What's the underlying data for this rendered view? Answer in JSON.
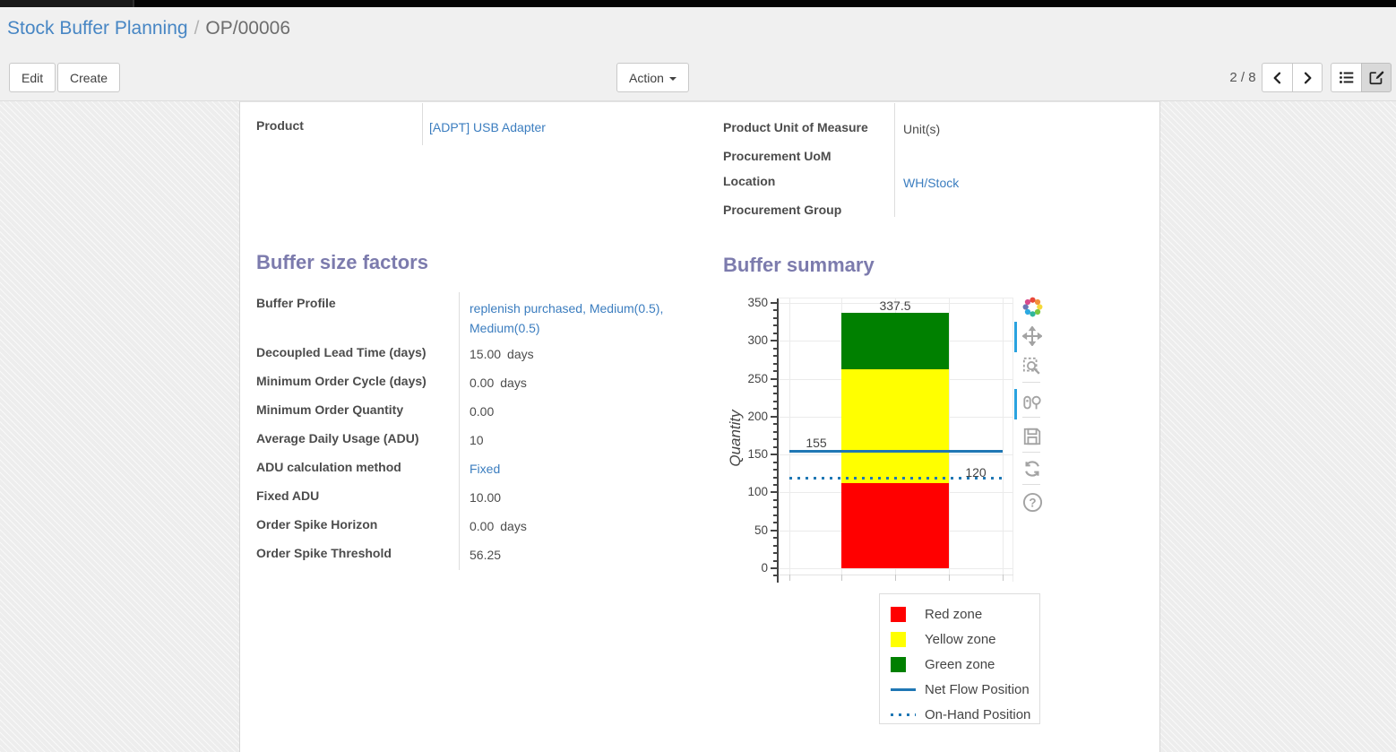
{
  "breadcrumb": {
    "items": [
      {
        "label": "Stock Buffer Planning"
      },
      {
        "label": "OP/00006"
      }
    ],
    "separator": "/"
  },
  "toolbar": {
    "edit_label": "Edit",
    "create_label": "Create",
    "action_label": "Action",
    "pager_value": "2 / 8",
    "icons": {
      "previous": "chevron-left-icon",
      "next": "chevron-right-icon",
      "list_view": "list-icon",
      "form_view": "edit-form-icon"
    }
  },
  "sheet": {
    "top_left_fields": [
      {
        "label": "Product",
        "value": "[ADPT] USB Adapter",
        "link": true
      }
    ],
    "top_right_fields": [
      {
        "label": "Product Unit of Measure",
        "value": "Unit(s)"
      },
      {
        "label": "Procurement UoM",
        "value": ""
      },
      {
        "label": "Location",
        "value": "WH/Stock",
        "link": true
      },
      {
        "label": "Procurement Group",
        "value": ""
      }
    ],
    "factors": {
      "title": "Buffer size factors",
      "fields": [
        {
          "label": "Buffer Profile",
          "value": "replenish purchased, Medium(0.5), Medium(0.5)",
          "link": true
        },
        {
          "label": "Decoupled Lead Time (days)",
          "value": "15.00",
          "unit": "days"
        },
        {
          "label": "Minimum Order Cycle (days)",
          "value": "0.00",
          "unit": "days"
        },
        {
          "label": "Minimum Order Quantity",
          "value": "0.00"
        },
        {
          "label": "Average Daily Usage (ADU)",
          "value": "10"
        },
        {
          "label": "ADU calculation method",
          "value": "Fixed",
          "link": true
        },
        {
          "label": "Fixed ADU",
          "value": "10.00"
        },
        {
          "label": "Order Spike Horizon",
          "value": "0.00",
          "unit": "days"
        },
        {
          "label": "Order Spike Threshold",
          "value": "56.25"
        }
      ]
    },
    "summary": {
      "title": "Buffer summary"
    }
  },
  "chart_data": {
    "type": "bar",
    "stacked": true,
    "title": "",
    "xlabel": "",
    "ylabel": "Quantity",
    "ylim": [
      0,
      350
    ],
    "yticks": [
      0,
      50,
      100,
      150,
      200,
      250,
      300,
      350
    ],
    "minor_tick_step": 10,
    "grid": true,
    "categories": [
      ""
    ],
    "series": [
      {
        "name": "Red zone",
        "color": "#ff0000",
        "values": [
          112.5
        ]
      },
      {
        "name": "Yellow zone",
        "color": "#ffff00",
        "values": [
          150
        ]
      },
      {
        "name": "Green zone",
        "color": "#008000",
        "values": [
          75
        ]
      }
    ],
    "boundary_labels": [
      "112.5",
      "262.5",
      "337.5"
    ],
    "lines": [
      {
        "name": "Net Flow Position",
        "value": 155,
        "style": "solid",
        "color": "#1f77b4"
      },
      {
        "name": "On-Hand Position",
        "value": 120,
        "style": "dotted",
        "color": "#1f77b4"
      }
    ],
    "legend_position": "below-right",
    "modebar_icons": [
      "plotly-logo",
      "pan-icon",
      "zoom-box-icon",
      "hover-compare-icon",
      "save-icon",
      "reset-axes-icon",
      "help-icon"
    ]
  }
}
